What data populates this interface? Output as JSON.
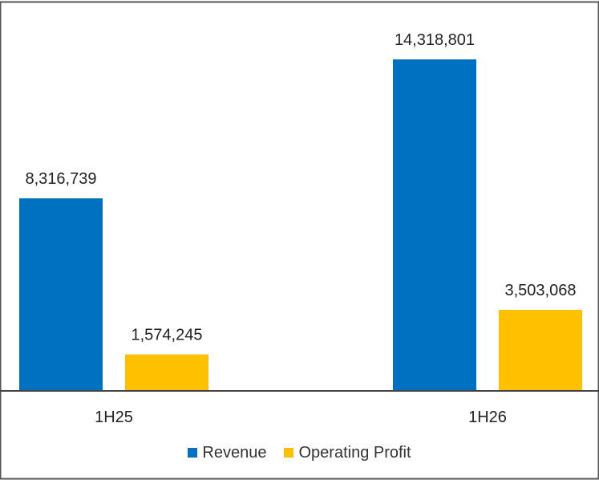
{
  "colors": {
    "revenue": "#0070c0",
    "operating_profit": "#ffc000",
    "axis": "#444444",
    "border": "#555555"
  },
  "chart_data": {
    "type": "bar",
    "categories": [
      "1H25",
      "1H26"
    ],
    "series": [
      {
        "name": "Revenue",
        "values": [
          8316739,
          14318801
        ],
        "labels": [
          "8,316,739",
          "14,318,801"
        ]
      },
      {
        "name": "Operating Profit",
        "values": [
          1574245,
          3503068
        ],
        "labels": [
          "1,574,245",
          "3,503,068"
        ]
      }
    ],
    "title": "",
    "xlabel": "",
    "ylabel": "",
    "ylim": [
      0,
      14318801
    ],
    "grid": false,
    "legend_position": "bottom"
  }
}
